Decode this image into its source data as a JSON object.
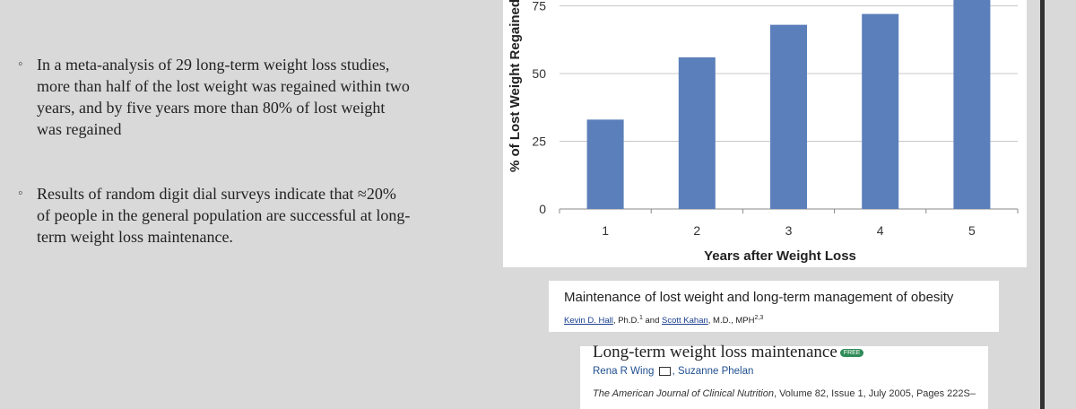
{
  "slide": {
    "bullets": [
      {
        "mark": "◦",
        "text": "In a meta-analysis of 29 long-term weight loss studies, more than half of the lost weight was regained within two years, and by five years more than 80% of lost weight was regained"
      },
      {
        "mark": "◦",
        "text": "Results of random digit dial surveys indicate that ≈20% of people in the general population are successful at long-term weight loss maintenance."
      }
    ]
  },
  "chart_data": {
    "type": "bar",
    "categories": [
      "1",
      "2",
      "3",
      "4",
      "5"
    ],
    "values": [
      33,
      56,
      68,
      72,
      83
    ],
    "title": "",
    "xlabel": "Years after Weight Loss",
    "ylabel": "% of Lost Weight Regained",
    "yticks": [
      "0",
      "25",
      "50",
      "75"
    ],
    "ylim": [
      0,
      80
    ],
    "grid": true,
    "bar_color": "#5b7fba"
  },
  "references": {
    "ref1": {
      "title": "Maintenance of lost weight and long-term management of obesity",
      "author1": "Kevin D. Hall",
      "author1_suffix": ", Ph.D.",
      "author1_sup": "1",
      "and": " and ",
      "author2": "Scott Kahan",
      "author2_suffix": ", M.D., MPH",
      "author2_sup": "2,3"
    },
    "ref2": {
      "title": "Long-term weight loss maintenance",
      "free_badge": "FREE",
      "author1": "Rena R Wing",
      "author2": "Suzanne Phelan",
      "journal": "The American Journal of Clinical Nutrition",
      "details": ", Volume 82, Issue 1, July 2005, Pages 222S–"
    }
  }
}
